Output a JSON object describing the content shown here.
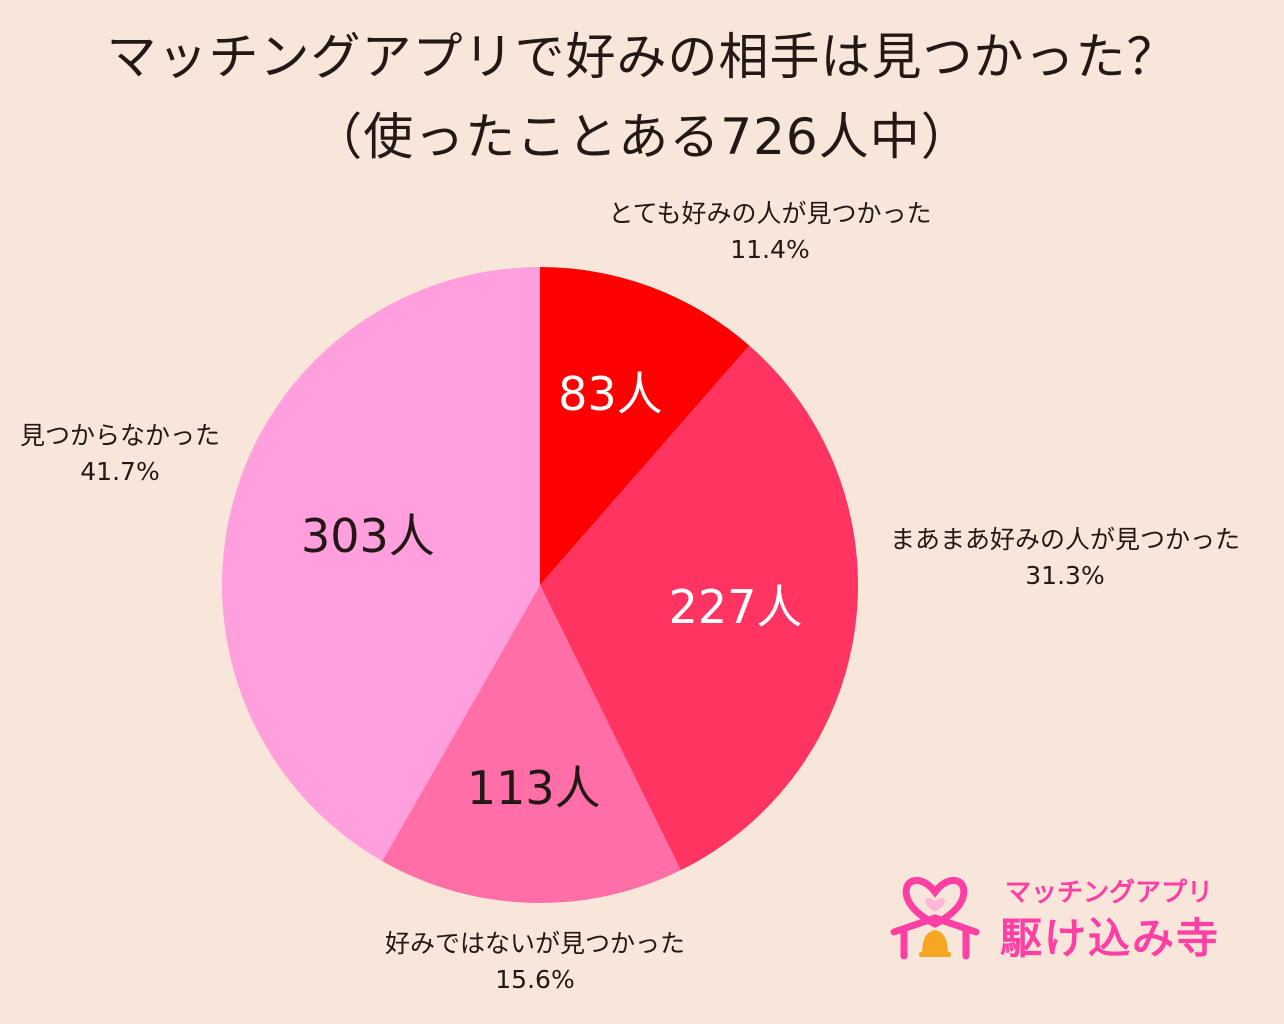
{
  "title": {
    "line1": "マッチングアプリで好みの相手は見つかった？",
    "line2": "（使ったことある726人中）"
  },
  "chart_data": {
    "type": "pie",
    "start_angle_deg": 0,
    "direction": "clockwise",
    "slices": [
      {
        "label": "とても好みの人が見つかった",
        "count": 83,
        "count_label": "83人",
        "percent": 11.4,
        "percent_label": "11.4%",
        "color": "#ff0000",
        "inner_text_color": "#ffffff"
      },
      {
        "label": "まあまあ好みの人が見つかった",
        "count": 227,
        "count_label": "227人",
        "percent": 31.3,
        "percent_label": "31.3%",
        "color": "#ff3461",
        "inner_text_color": "#ffffff"
      },
      {
        "label": "好みではないが見つかった",
        "count": 113,
        "count_label": "113人",
        "percent": 15.6,
        "percent_label": "15.6%",
        "color": "#ff6ea7",
        "inner_text_color": "#231815"
      },
      {
        "label": "見つからなかった",
        "count": 303,
        "count_label": "303人",
        "percent": 41.7,
        "percent_label": "41.7%",
        "color": "#ff9fde",
        "inner_text_color": "#231815"
      }
    ],
    "total": 726
  },
  "logo": {
    "subtitle": "マッチングアプリ",
    "name": "駆け込み寺",
    "color": "#ff3fa4"
  }
}
